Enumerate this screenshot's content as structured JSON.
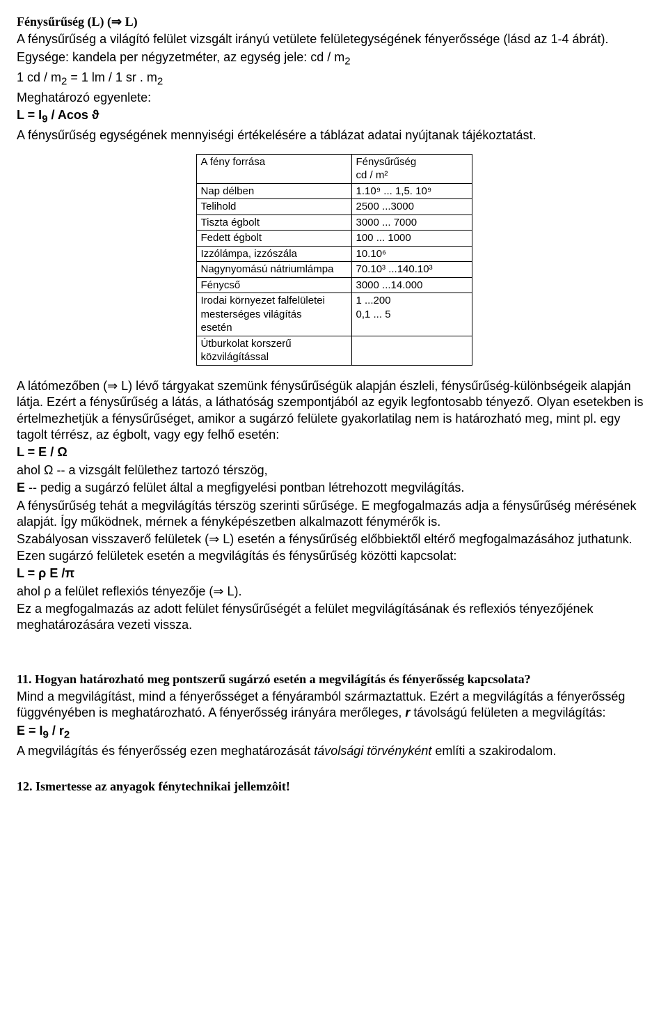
{
  "h1": {
    "title": "Fénysűrűség (L) (⇒ L)",
    "p1": "A fénysűrűség a világító felület vizsgált irányú vetülete felületegységének fényerőssége (lásd az 1-4 ábrát).",
    "p2a": "Egysége: kandela per négyzetméter, az egység jele: cd / m",
    "p2sub": "2",
    "p3a": "1 cd / m",
    "p3sub1": "2",
    "p3b": " = 1 lm / 1 sr . m",
    "p3sub2": "2",
    "p4": "Meghatározó egyenlete:",
    "eq_a": "L = I",
    "eq_sub": "9",
    "eq_b": " / Acos ϑ",
    "p5": "A fénysűrűség egységének mennyiségi értékelésére a táblázat adatai nyújtanak tájékoztatást."
  },
  "table": {
    "header_col1": "A fény forrása",
    "header_col2a": "Fénysűrűség",
    "header_col2b": "cd / m²",
    "rows": [
      {
        "c1": "Nap délben",
        "c2": "1.10⁹ ... 1,5. 10⁹"
      },
      {
        "c1": "Telihold",
        "c2": "2500 ...3000"
      },
      {
        "c1": "Tiszta égbolt",
        "c2": "3000 ... 7000"
      },
      {
        "c1": "Fedett égbolt",
        "c2": "100 ... 1000"
      },
      {
        "c1": "Izzólámpa, izzószála",
        "c2": "10.10⁶"
      },
      {
        "c1": "Nagynyomású nátriumlámpa",
        "c2": "70.10³ ...140.10³"
      },
      {
        "c1": "Fénycső",
        "c2": "3000 ...14.000"
      },
      {
        "c1": "Irodai környezet falfelületei\nmesterséges        világítás\nesetén",
        "c2": "1 ...200\n0,1 ... 5"
      },
      {
        "c1": "Útburkolat          korszerű\nközvilágítással",
        "c2": ""
      }
    ]
  },
  "body2": {
    "p1": "A látómezőben (⇒ L) lévő tárgyakat szemünk fénysűrűségük alapján észleli, fénysűrűség-különbségeik alapján látja. Ezért a fénysűrűség a látás, a láthatóság szempontjából az egyik legfontosabb tényező. Olyan esetekben is értelmezhetjük a fénysűrűséget, amikor a sugárzó felülete gyakorlatilag nem is határozható meg, mint pl. egy tagolt térrész, az égbolt, vagy egy felhő esetén:",
    "eq1": "L = E / Ω",
    "p2": "ahol Ω -- a vizsgált felülethez tartozó térszög,",
    "p3a": "E",
    "p3b": " -- pedig a sugárzó felület által a megfigyelési pontban létrehozott megvilágítás.",
    "p4": "A fénysűrűség tehát a megvilágítás térszög szerinti sűrűsége. E megfogalmazás adja a fénysűrűség mérésének alapját. Így működnek, mérnek a fényképészetben alkalmazott fénymérők is.",
    "p5": "Szabályosan visszaverő felületek (⇒ L) esetén a fénysűrűség előbbiektől eltérő megfogalmazásához juthatunk. Ezen sugárzó felületek esetén a megvilágítás és fénysűrűség közötti kapcsolat:",
    "eq2a": "L = ρ ",
    "eq2b": "E /",
    "eq2c": "π",
    "p6": "ahol ρ a felület reflexiós tényezője (⇒ L).",
    "p7": "Ez a megfogalmazás az adott felület fénysűrűségét a felület megvilágításának és reflexiós tényezőjének meghatározására vezeti vissza."
  },
  "q11": {
    "title": "11. Hogyan határozható meg pontszerű sugárzó esetén a megvilágítás és fényerősség kapcsolata?",
    "p1a": "Mind a megvilágítást, mind a fényerősséget a fényáramból származtattuk. Ezért a megvilágítás a fényerősség függvényében is meghatározható. A fényerősség irányára merőleges, ",
    "p1b_italic": "r",
    "p1c": " távolságú felületen a megvilágítás:",
    "eq_a": "E = I",
    "eq_sub1": "9",
    "eq_b": " / r",
    "eq_sub2": "2",
    "p2a": "A megvilágítás és fényerősség ezen meghatározását ",
    "p2b_italic": "távolsági törvényként",
    "p2c": " említi a szakirodalom."
  },
  "q12": {
    "title": "12. Ismertesse az anyagok fénytechnikai jellemzôit!"
  }
}
